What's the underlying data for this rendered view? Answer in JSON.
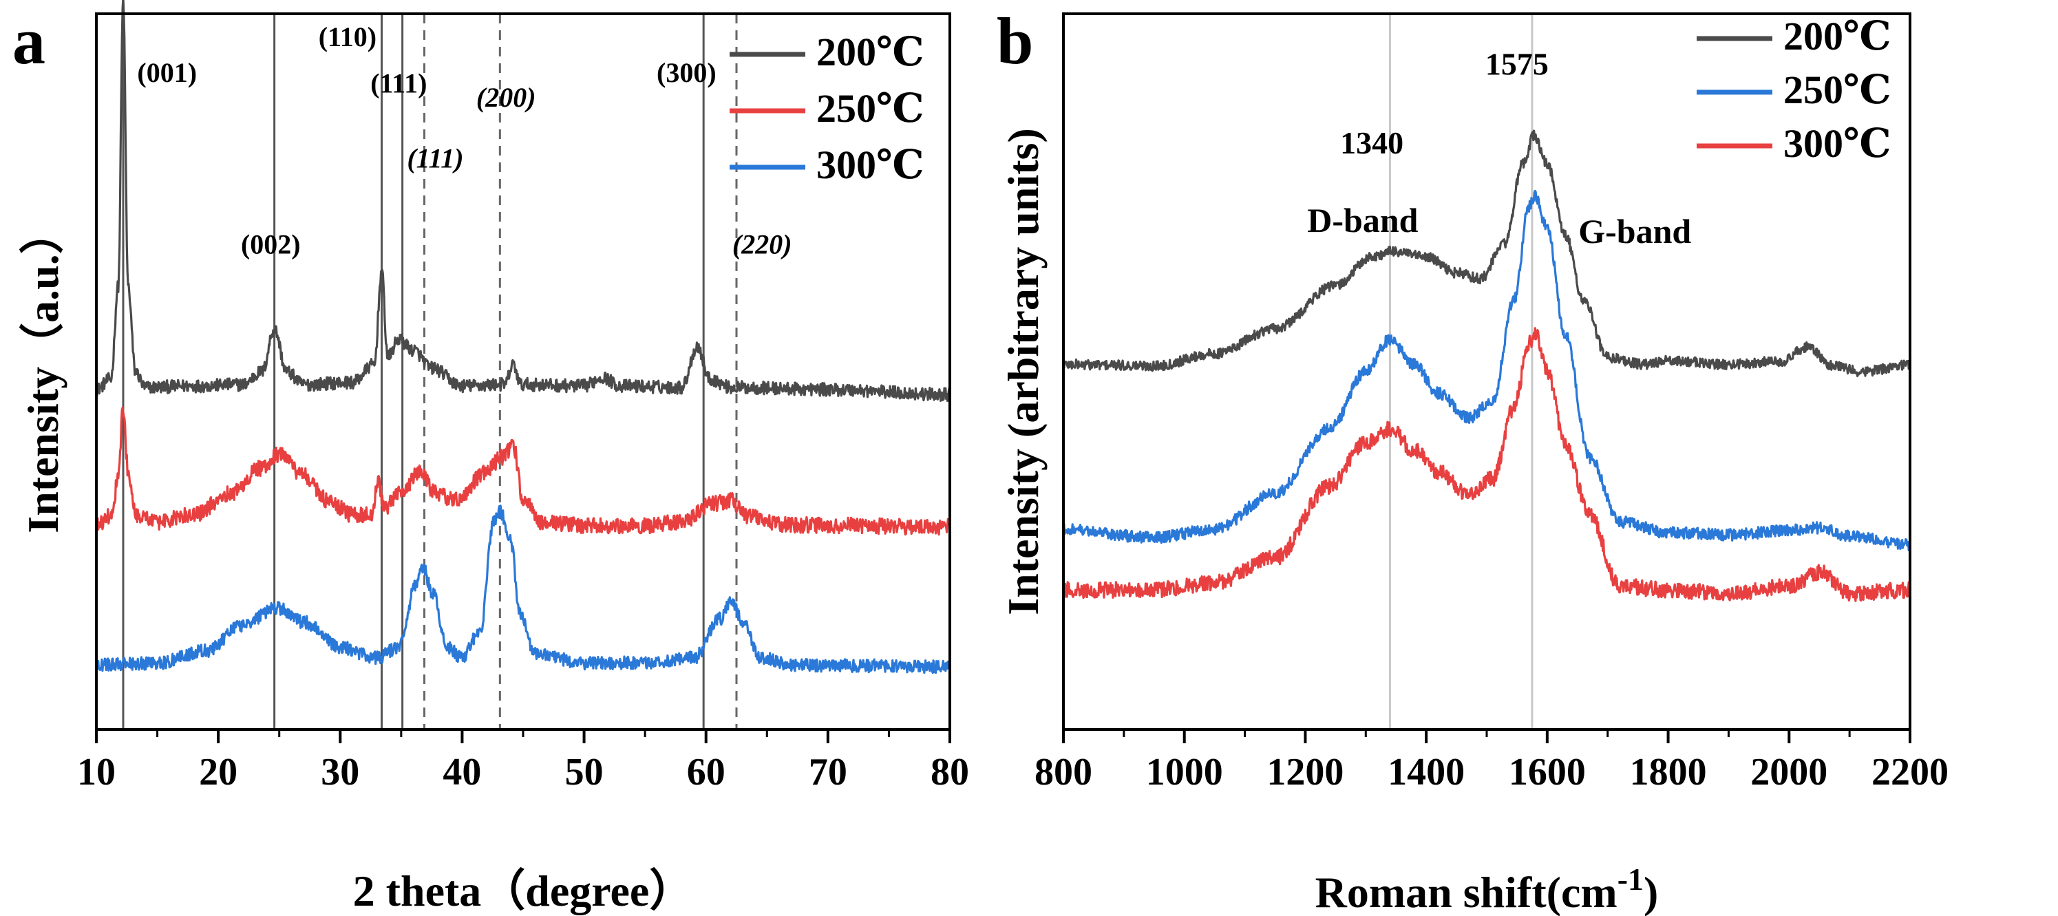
{
  "chart_data": [
    {
      "type": "line",
      "panel": "a",
      "title": "",
      "xlabel": "2 theta（degree）",
      "ylabel": "Intensity（a.u.）",
      "xlim": [
        10,
        80
      ],
      "xticks": [
        10,
        20,
        30,
        40,
        50,
        60,
        70,
        80
      ],
      "yticks": [],
      "legend_position": "top-right",
      "reference_lines_solid": [
        12.2,
        24.6,
        33.4,
        35.1,
        59.8
      ],
      "reference_lines_dashed": [
        36.9,
        43.1,
        62.5
      ],
      "annotations": [
        {
          "text": "(001)",
          "x": 15.8,
          "y": 0.905,
          "italic": false
        },
        {
          "text": "(002)",
          "x": 24.3,
          "y": 0.665,
          "italic": false
        },
        {
          "text": "(110)",
          "x": 30.6,
          "y": 0.955,
          "italic": false
        },
        {
          "text": "(111)",
          "x": 34.8,
          "y": 0.89,
          "italic": false
        },
        {
          "text": "(111)",
          "x": 37.8,
          "y": 0.785,
          "italic": true
        },
        {
          "text": "(200)",
          "x": 43.6,
          "y": 0.87,
          "italic": true
        },
        {
          "text": "(300)",
          "x": 58.4,
          "y": 0.905,
          "italic": false
        },
        {
          "text": "(220)",
          "x": 64.6,
          "y": 0.665,
          "italic": true
        }
      ],
      "series": [
        {
          "name": "200℃",
          "color": "#4a4a4a",
          "baseline": 0.475,
          "noise": 0.009,
          "points": [
            [
              10,
              0.475
            ],
            [
              11.2,
              0.49
            ],
            [
              11.8,
              0.62
            ],
            [
              12.2,
              1.02
            ],
            [
              12.6,
              0.62
            ],
            [
              13.2,
              0.5
            ],
            [
              14,
              0.478
            ],
            [
              18,
              0.48
            ],
            [
              22,
              0.482
            ],
            [
              23.6,
              0.5
            ],
            [
              24.6,
              0.56
            ],
            [
              25.6,
              0.5
            ],
            [
              27,
              0.482
            ],
            [
              31,
              0.485
            ],
            [
              32.8,
              0.51
            ],
            [
              33.4,
              0.64
            ],
            [
              33.9,
              0.52
            ],
            [
              34.8,
              0.545
            ],
            [
              36,
              0.53
            ],
            [
              37.5,
              0.505
            ],
            [
              40,
              0.48
            ],
            [
              43.5,
              0.482
            ],
            [
              44.2,
              0.51
            ],
            [
              44.8,
              0.482
            ],
            [
              50,
              0.48
            ],
            [
              51.5,
              0.492
            ],
            [
              53,
              0.48
            ],
            [
              58,
              0.478
            ],
            [
              59.3,
              0.535
            ],
            [
              60.3,
              0.49
            ],
            [
              62,
              0.478
            ],
            [
              70,
              0.475
            ],
            [
              80,
              0.468
            ]
          ]
        },
        {
          "name": "250℃",
          "color": "#e84040",
          "baseline": 0.285,
          "noise": 0.011,
          "points": [
            [
              10,
              0.285
            ],
            [
              11.3,
              0.3
            ],
            [
              11.8,
              0.36
            ],
            [
              12.2,
              0.45
            ],
            [
              12.6,
              0.36
            ],
            [
              13.3,
              0.3
            ],
            [
              15,
              0.29
            ],
            [
              18,
              0.3
            ],
            [
              21,
              0.33
            ],
            [
              23.5,
              0.365
            ],
            [
              25,
              0.385
            ],
            [
              27,
              0.355
            ],
            [
              29,
              0.32
            ],
            [
              31,
              0.3
            ],
            [
              32.6,
              0.3
            ],
            [
              33.1,
              0.35
            ],
            [
              33.6,
              0.31
            ],
            [
              35,
              0.33
            ],
            [
              36.5,
              0.36
            ],
            [
              37.8,
              0.33
            ],
            [
              39.5,
              0.32
            ],
            [
              42,
              0.36
            ],
            [
              43.2,
              0.38
            ],
            [
              44.2,
              0.395
            ],
            [
              45,
              0.32
            ],
            [
              46.5,
              0.29
            ],
            [
              50,
              0.285
            ],
            [
              55,
              0.285
            ],
            [
              58,
              0.29
            ],
            [
              60.5,
              0.315
            ],
            [
              62,
              0.32
            ],
            [
              63.5,
              0.298
            ],
            [
              66,
              0.286
            ],
            [
              80,
              0.283
            ]
          ]
        },
        {
          "name": "300℃",
          "color": "#2a78d8",
          "baseline": 0.09,
          "noise": 0.009,
          "points": [
            [
              10,
              0.09
            ],
            [
              15,
              0.093
            ],
            [
              19,
              0.11
            ],
            [
              22,
              0.145
            ],
            [
              24.8,
              0.17
            ],
            [
              27,
              0.15
            ],
            [
              30,
              0.115
            ],
            [
              33,
              0.1
            ],
            [
              34.8,
              0.115
            ],
            [
              36.2,
              0.2
            ],
            [
              36.8,
              0.225
            ],
            [
              37.6,
              0.19
            ],
            [
              38.8,
              0.115
            ],
            [
              40,
              0.1
            ],
            [
              41.5,
              0.14
            ],
            [
              42.6,
              0.29
            ],
            [
              43.1,
              0.305
            ],
            [
              43.9,
              0.27
            ],
            [
              44.8,
              0.16
            ],
            [
              46,
              0.105
            ],
            [
              50,
              0.093
            ],
            [
              55,
              0.093
            ],
            [
              59,
              0.1
            ],
            [
              61.2,
              0.155
            ],
            [
              62.1,
              0.18
            ],
            [
              63,
              0.15
            ],
            [
              64.5,
              0.1
            ],
            [
              67,
              0.09
            ],
            [
              80,
              0.088
            ]
          ]
        }
      ]
    },
    {
      "type": "line",
      "panel": "b",
      "title": "",
      "xlabel": "Roman shift(cm",
      "xlabel_superscript": "-1",
      "xlabel_suffix": ")",
      "ylabel": "Intensity (arbitrary units)",
      "xlim": [
        800,
        2200
      ],
      "xticks": [
        800,
        1000,
        1200,
        1400,
        1600,
        1800,
        2000,
        2200
      ],
      "yticks": [],
      "legend_position": "top-right",
      "reference_lines": [
        1340,
        1575
      ],
      "annotations": [
        {
          "text": "1340",
          "x": 1310,
          "y": 0.805
        },
        {
          "text": "1575",
          "x": 1550,
          "y": 0.915
        },
        {
          "text": "D-band",
          "x": 1295,
          "y": 0.695
        },
        {
          "text": "G-band",
          "x": 1745,
          "y": 0.68
        }
      ],
      "series": [
        {
          "name": "200℃",
          "color": "#4a4a4a",
          "baseline": 0.51,
          "noise": 0.007,
          "points": [
            [
              800,
              0.51
            ],
            [
              950,
              0.508
            ],
            [
              1050,
              0.525
            ],
            [
              1150,
              0.56
            ],
            [
              1250,
              0.62
            ],
            [
              1310,
              0.66
            ],
            [
              1345,
              0.668
            ],
            [
              1400,
              0.66
            ],
            [
              1450,
              0.638
            ],
            [
              1490,
              0.63
            ],
            [
              1530,
              0.68
            ],
            [
              1560,
              0.79
            ],
            [
              1578,
              0.83
            ],
            [
              1600,
              0.79
            ],
            [
              1630,
              0.69
            ],
            [
              1660,
              0.6
            ],
            [
              1700,
              0.52
            ],
            [
              1760,
              0.51
            ],
            [
              1800,
              0.515
            ],
            [
              1900,
              0.51
            ],
            [
              1990,
              0.515
            ],
            [
              2030,
              0.535
            ],
            [
              2070,
              0.508
            ],
            [
              2120,
              0.5
            ],
            [
              2200,
              0.51
            ]
          ]
        },
        {
          "name": "250℃",
          "color": "#2a78d8",
          "baseline": 0.275,
          "noise": 0.008,
          "points": [
            [
              800,
              0.28
            ],
            [
              950,
              0.268
            ],
            [
              1050,
              0.28
            ],
            [
              1150,
              0.33
            ],
            [
              1240,
              0.42
            ],
            [
              1300,
              0.5
            ],
            [
              1340,
              0.545
            ],
            [
              1380,
              0.51
            ],
            [
              1420,
              0.47
            ],
            [
              1470,
              0.435
            ],
            [
              1510,
              0.46
            ],
            [
              1545,
              0.6
            ],
            [
              1570,
              0.73
            ],
            [
              1580,
              0.745
            ],
            [
              1600,
              0.7
            ],
            [
              1630,
              0.55
            ],
            [
              1670,
              0.38
            ],
            [
              1720,
              0.29
            ],
            [
              1800,
              0.275
            ],
            [
              1900,
              0.272
            ],
            [
              2000,
              0.278
            ],
            [
              2050,
              0.282
            ],
            [
              2100,
              0.27
            ],
            [
              2200,
              0.258
            ]
          ]
        },
        {
          "name": "300℃",
          "color": "#e84040",
          "baseline": 0.19,
          "noise": 0.011,
          "points": [
            [
              800,
              0.195
            ],
            [
              950,
              0.195
            ],
            [
              1050,
              0.205
            ],
            [
              1150,
              0.24
            ],
            [
              1240,
              0.34
            ],
            [
              1300,
              0.4
            ],
            [
              1340,
              0.42
            ],
            [
              1380,
              0.39
            ],
            [
              1420,
              0.36
            ],
            [
              1470,
              0.33
            ],
            [
              1510,
              0.35
            ],
            [
              1545,
              0.45
            ],
            [
              1570,
              0.54
            ],
            [
              1580,
              0.555
            ],
            [
              1600,
              0.5
            ],
            [
              1630,
              0.4
            ],
            [
              1670,
              0.3
            ],
            [
              1720,
              0.2
            ],
            [
              1800,
              0.195
            ],
            [
              1900,
              0.19
            ],
            [
              2000,
              0.2
            ],
            [
              2050,
              0.22
            ],
            [
              2100,
              0.19
            ],
            [
              2200,
              0.195
            ]
          ]
        }
      ]
    }
  ]
}
